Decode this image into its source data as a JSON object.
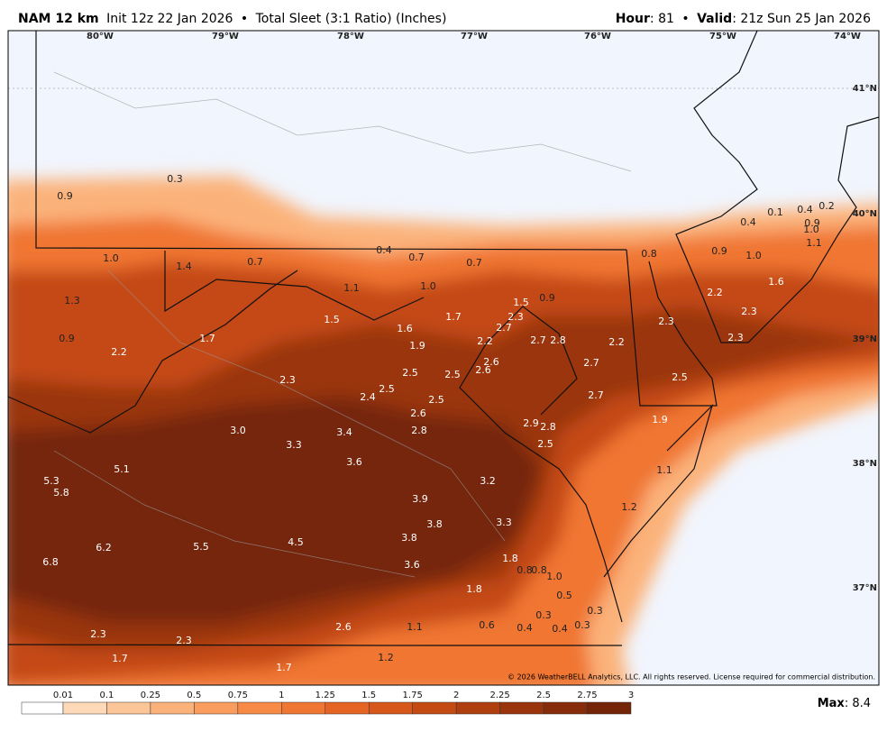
{
  "header": {
    "model": "NAM 12 km",
    "init": "Init 12z 22 Jan 2026",
    "separator": "•",
    "product": "Total Sleet (3:1 Ratio) (Inches)",
    "hour_label": "Hour",
    "hour": ": 81",
    "valid_label": "Valid",
    "valid": ": 21z Sun 25 Jan 2026"
  },
  "map": {
    "lon_labels": [
      "80°W",
      "79°W",
      "78°W",
      "77°W",
      "76°W",
      "75°W",
      "74°W"
    ],
    "lat_labels": [
      "41°N",
      "40°N",
      "39°N",
      "38°N",
      "37°N"
    ],
    "value_labels": [
      "0.9",
      "0.3",
      "1.0",
      "1.4",
      "0.7",
      "0.4",
      "0.7",
      "0.7",
      "1.3",
      "1.1",
      "1.0",
      "0.8",
      "0.9",
      "1.0",
      "0.4",
      "0.1",
      "0.4",
      "0.2",
      "0.9",
      "1.0",
      "1.1",
      "0.9",
      "2.2",
      "1.7",
      "1.5",
      "1.6",
      "1.9",
      "1.7",
      "1.5",
      "0.9",
      "2.3",
      "2.7",
      "2.2",
      "2.7",
      "2.8",
      "2.2",
      "2.2",
      "1.6",
      "2.3",
      "2.3",
      "2.3",
      "2.3",
      "2.5",
      "2.5",
      "2.6",
      "2.6",
      "2.7",
      "2.5",
      "2.4",
      "2.5",
      "2.5",
      "2.7",
      "2.6",
      "2.8",
      "2.9",
      "2.8",
      "2.5",
      "1.9",
      "3.0",
      "3.3",
      "3.4",
      "3.6",
      "1.1",
      "5.3",
      "5.8",
      "5.1",
      "3.2",
      "3.9",
      "1.2",
      "3.8",
      "3.3",
      "6.2",
      "5.5",
      "4.5",
      "3.8",
      "6.8",
      "3.6",
      "1.8",
      "0.8",
      "0.8",
      "1.0",
      "1.8",
      "0.5",
      "0.3",
      "0.3",
      "2.6",
      "1.1",
      "0.6",
      "0.4",
      "0.4",
      "0.3",
      "2.3",
      "2.3",
      "1.7",
      "1.2",
      "1.7"
    ],
    "copyright": "© 2026 WeatherBELL Analytics, LLC. All rights reserved. License required for commercial distribution."
  },
  "colorbar": {
    "ticks": [
      0.01,
      0.1,
      0.25,
      0.5,
      0.75,
      1,
      1.25,
      1.5,
      1.75,
      2,
      2.25,
      2.5,
      2.75,
      3
    ],
    "colors": [
      "#ffffff",
      "#fdd9b8",
      "#fcc597",
      "#fbb27a",
      "#f99d5f",
      "#f78a47",
      "#f07633",
      "#e56424",
      "#d6561b",
      "#c44a14",
      "#b03f10",
      "#9a340c",
      "#872c0a",
      "#752507"
    ]
  },
  "max": {
    "label": "Max",
    "value": ": 8.4"
  }
}
